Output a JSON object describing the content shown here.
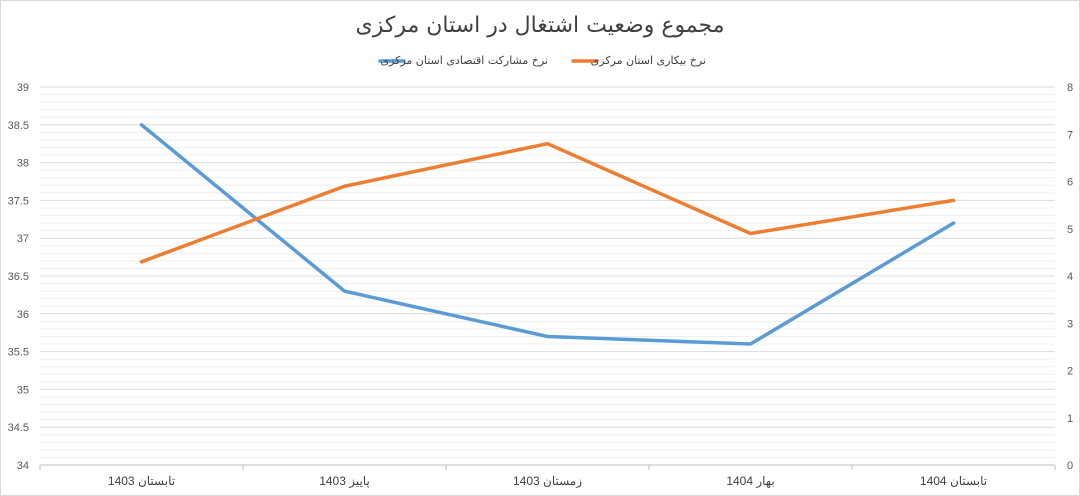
{
  "chart_data": {
    "type": "line",
    "title": "مجموع وضعیت اشتغال در استان مرکزی",
    "categories": [
      "تابستان 1403",
      "پاییز 1403",
      "زمستان 1403",
      "بهار 1404",
      "تابستان 1404"
    ],
    "series": [
      {
        "name": "نرخ مشارکت اقتصادی استان مرکزی",
        "color": "#5b9bd5",
        "axis": "left",
        "values": [
          38.5,
          36.3,
          35.7,
          35.6,
          37.2
        ]
      },
      {
        "name": "نرخ بیکاری استان مرکزی",
        "color": "#ed7d31",
        "axis": "right",
        "values": [
          4.3,
          5.9,
          6.8,
          4.9,
          5.6
        ]
      }
    ],
    "y_left": {
      "ylim": [
        34,
        39
      ],
      "ticks": [
        "34",
        "34.5",
        "35",
        "35.5",
        "36",
        "36.5",
        "37",
        "37.5",
        "38",
        "38.5",
        "39"
      ]
    },
    "y_right": {
      "ylim": [
        0,
        8
      ],
      "ticks": [
        "0",
        "1",
        "2",
        "3",
        "4",
        "5",
        "6",
        "7",
        "8"
      ]
    },
    "grid": true,
    "legend_position": "top"
  }
}
